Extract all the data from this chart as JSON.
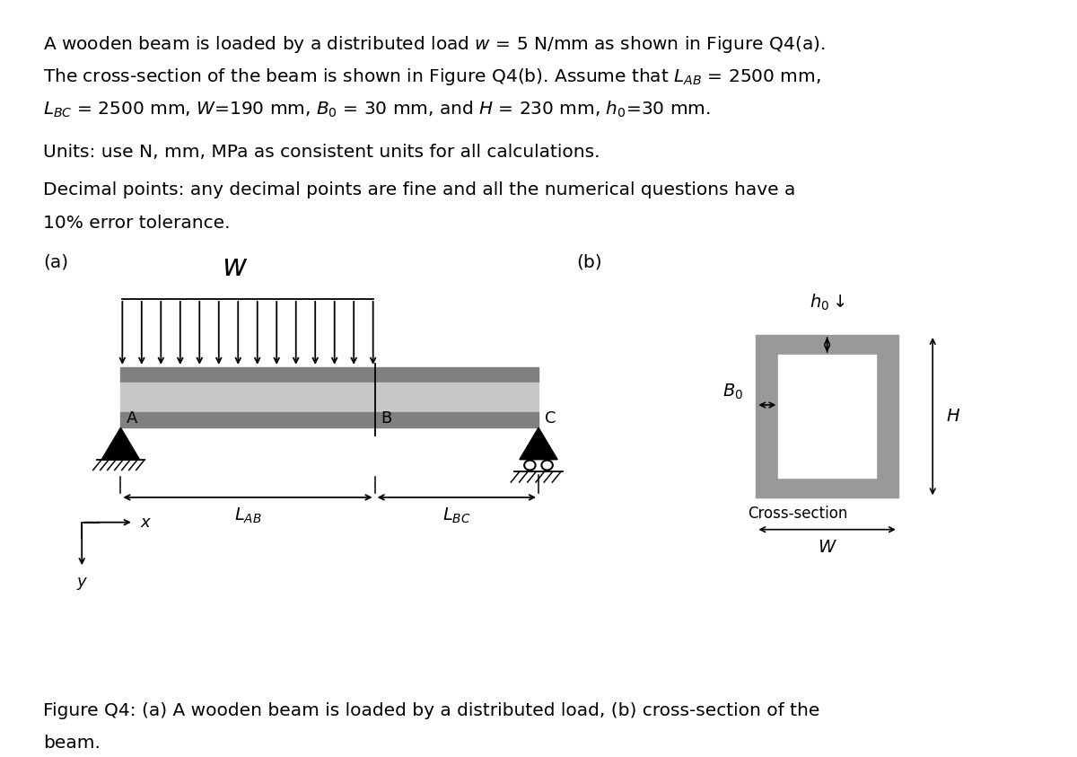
{
  "background_color": "#ffffff",
  "text_color": "#000000",
  "beam_dark": "#808080",
  "beam_light": "#c8c8c8",
  "cs_gray": "#999999",
  "cs_white": "#ffffff",
  "text_lines": [
    "A wooden beam is loaded by a distributed load $w$ = 5 N/mm as shown in Figure Q4(a).",
    "The cross-section of the beam is shown in Figure Q4(b). Assume that $L_{AB}$ = 2500 mm,",
    "$L_{BC}$ = 2500 mm, $W$=190 mm, $B_0$ = 30 mm, and $H$ = 230 mm, $h_0$=30 mm."
  ],
  "units_line": "Units: use N, mm, MPa as consistent units for all calculations.",
  "decimal_lines": [
    "Decimal points: any decimal points are fine and all the numerical questions have a",
    "10% error tolerance."
  ],
  "caption_lines": [
    "Figure Q4: (a) A wooden beam is loaded by a distributed load, (b) cross-section of the",
    "beam."
  ],
  "fontsize_body": 14.5,
  "fontsize_caption": 14.5
}
